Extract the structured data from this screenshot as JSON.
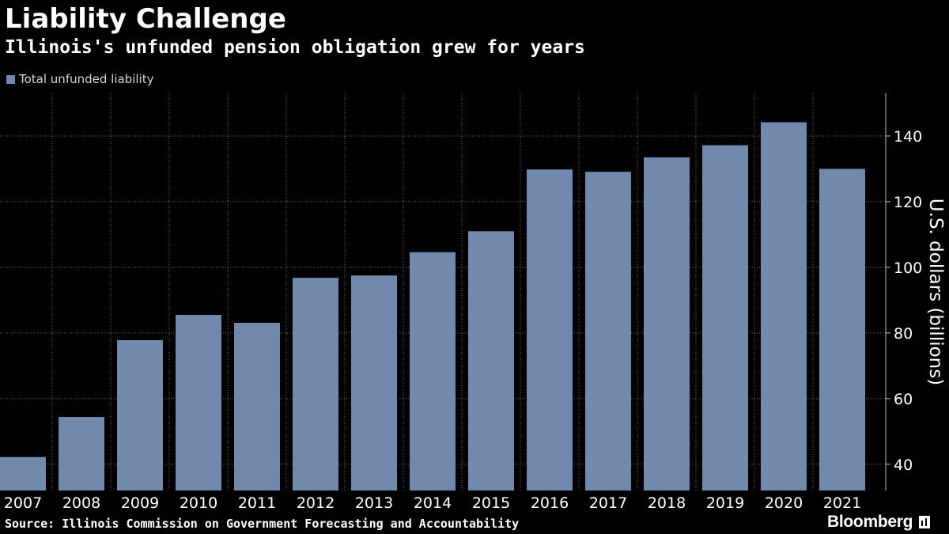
{
  "header": {
    "title": "Liability Challenge",
    "subtitle": "Illinois's unfunded pension obligation grew for years"
  },
  "legend": {
    "label": "Total unfunded liability",
    "color": "#7189ad"
  },
  "footer": {
    "source": "Source: Illinois Commission on Government Forecasting and Accountability",
    "brand": "Bloomberg"
  },
  "colors": {
    "background": "#000000",
    "bar": "#7189ad",
    "grid": "#6e6e6e",
    "text": "#ffffff"
  },
  "chart_data": {
    "type": "bar",
    "title": "Liability Challenge",
    "subtitle": "Illinois's unfunded pension obligation grew for years",
    "categories": [
      "2007",
      "2008",
      "2009",
      "2010",
      "2011",
      "2012",
      "2013",
      "2014",
      "2015",
      "2016",
      "2017",
      "2018",
      "2019",
      "2020",
      "2021"
    ],
    "series": [
      {
        "name": "Total unfunded liability",
        "values": [
          42.2,
          54.4,
          77.8,
          85.5,
          83.1,
          96.8,
          97.5,
          104.6,
          111.0,
          129.8,
          129.1,
          133.5,
          137.2,
          144.2,
          130.0
        ]
      }
    ],
    "xlabel": "",
    "ylabel": "U.S. dollars (billions)",
    "yticks": [
      40,
      60,
      80,
      100,
      120,
      140
    ],
    "ylim": [
      32,
      153
    ],
    "grid": true,
    "legend_position": "top-left"
  }
}
